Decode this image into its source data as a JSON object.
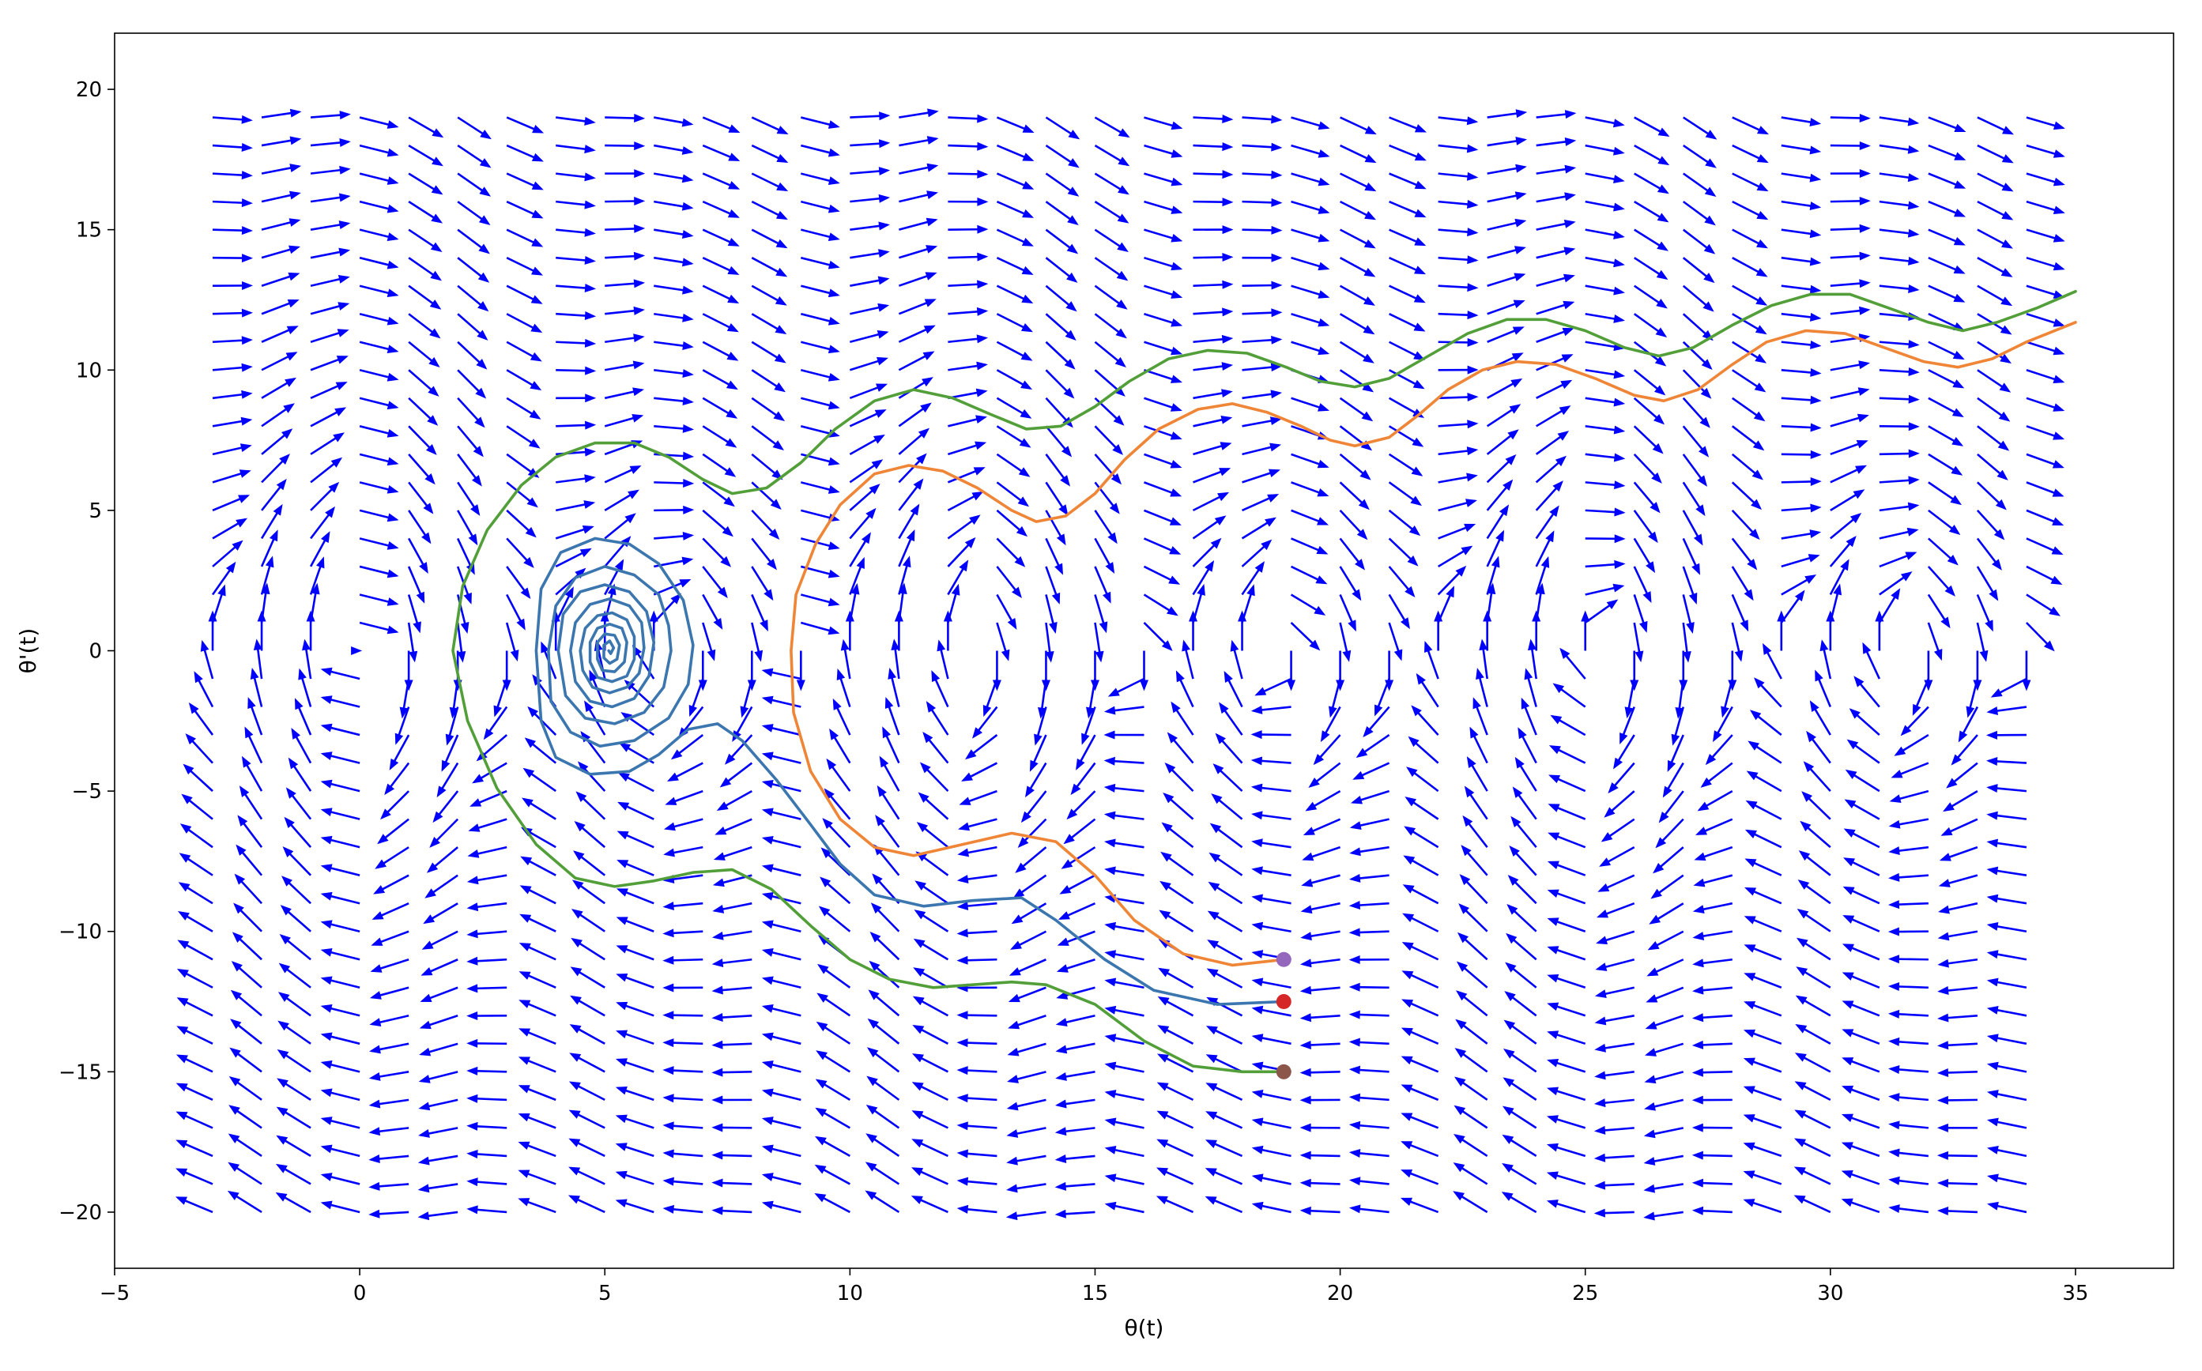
{
  "chart_data": {
    "type": "quiver",
    "title": "",
    "xlabel": "θ(t)",
    "ylabel": "θ'(t)",
    "xlim": [
      -5,
      37
    ],
    "ylim": [
      -22,
      22
    ],
    "xticks": [
      -5,
      0,
      5,
      10,
      15,
      20,
      25,
      30,
      35
    ],
    "yticks": [
      -20,
      -15,
      -10,
      -5,
      0,
      5,
      10,
      15,
      20
    ],
    "grid": false,
    "legend": "none",
    "vector_field": {
      "description_free": true,
      "color": "#0000ff",
      "x_range": [
        -3,
        34
      ],
      "y_range": [
        -20,
        19
      ],
      "nx": 38,
      "ny": 40
    },
    "series": [
      {
        "color": "#3b76af",
        "start": [
          18.85,
          -12.5
        ],
        "points": [
          [
            18.85,
            -12.5
          ],
          [
            17.5,
            -12.6
          ],
          [
            16.2,
            -12.1
          ],
          [
            15.2,
            -11.0
          ],
          [
            14.2,
            -9.6
          ],
          [
            13.5,
            -8.8
          ],
          [
            12.5,
            -8.9
          ],
          [
            11.5,
            -9.1
          ],
          [
            10.5,
            -8.7
          ],
          [
            9.8,
            -7.6
          ],
          [
            9.2,
            -6.2
          ],
          [
            8.5,
            -4.6
          ],
          [
            7.8,
            -3.2
          ],
          [
            7.3,
            -2.6
          ],
          [
            6.7,
            -2.8
          ],
          [
            6.1,
            -3.7
          ],
          [
            5.5,
            -4.3
          ],
          [
            4.7,
            -4.4
          ],
          [
            4.0,
            -3.8
          ],
          [
            3.7,
            -2.5
          ],
          [
            3.6,
            0.0
          ],
          [
            3.7,
            2.2
          ],
          [
            4.1,
            3.5
          ],
          [
            4.8,
            4.0
          ],
          [
            5.5,
            3.8
          ],
          [
            6.1,
            3.1
          ],
          [
            6.6,
            1.8
          ],
          [
            6.8,
            0.2
          ],
          [
            6.7,
            -1.2
          ],
          [
            6.3,
            -2.4
          ],
          [
            5.6,
            -3.2
          ],
          [
            4.9,
            -3.4
          ],
          [
            4.3,
            -2.9
          ],
          [
            3.9,
            -1.8
          ],
          [
            3.85,
            0.0
          ],
          [
            4.0,
            1.6
          ],
          [
            4.4,
            2.6
          ],
          [
            5.0,
            3.0
          ],
          [
            5.6,
            2.7
          ],
          [
            6.1,
            2.0
          ],
          [
            6.3,
            0.9
          ],
          [
            6.35,
            0.0
          ],
          [
            6.2,
            -1.3
          ],
          [
            5.8,
            -2.2
          ],
          [
            5.2,
            -2.6
          ],
          [
            4.6,
            -2.4
          ],
          [
            4.2,
            -1.6
          ],
          [
            4.05,
            0.0
          ],
          [
            4.15,
            1.3
          ],
          [
            4.5,
            2.1
          ],
          [
            5.0,
            2.35
          ],
          [
            5.5,
            2.1
          ],
          [
            5.85,
            1.4
          ],
          [
            6.0,
            0.3
          ],
          [
            5.9,
            -0.9
          ],
          [
            5.6,
            -1.7
          ],
          [
            5.15,
            -2.0
          ],
          [
            4.7,
            -1.8
          ],
          [
            4.4,
            -1.1
          ],
          [
            4.3,
            0.0
          ],
          [
            4.4,
            1.0
          ],
          [
            4.7,
            1.65
          ],
          [
            5.1,
            1.85
          ],
          [
            5.5,
            1.6
          ],
          [
            5.75,
            1.0
          ],
          [
            5.8,
            0.1
          ],
          [
            5.7,
            -0.8
          ],
          [
            5.45,
            -1.3
          ],
          [
            5.1,
            -1.5
          ],
          [
            4.75,
            -1.3
          ],
          [
            4.55,
            -0.7
          ],
          [
            4.5,
            0.0
          ],
          [
            4.6,
            0.8
          ],
          [
            4.85,
            1.25
          ],
          [
            5.15,
            1.35
          ],
          [
            5.45,
            1.1
          ],
          [
            5.6,
            0.5
          ],
          [
            5.6,
            -0.3
          ],
          [
            5.45,
            -0.9
          ],
          [
            5.15,
            -1.1
          ],
          [
            4.85,
            -0.95
          ],
          [
            4.7,
            -0.4
          ],
          [
            4.7,
            0.3
          ],
          [
            4.85,
            0.8
          ],
          [
            5.1,
            0.95
          ],
          [
            5.35,
            0.8
          ],
          [
            5.45,
            0.3
          ],
          [
            5.4,
            -0.4
          ],
          [
            5.2,
            -0.75
          ],
          [
            4.95,
            -0.7
          ],
          [
            4.85,
            -0.3
          ],
          [
            4.85,
            0.3
          ],
          [
            5.0,
            0.6
          ],
          [
            5.2,
            0.55
          ],
          [
            5.3,
            0.2
          ],
          [
            5.25,
            -0.3
          ],
          [
            5.1,
            -0.45
          ],
          [
            4.98,
            -0.25
          ],
          [
            4.98,
            0.2
          ],
          [
            5.1,
            0.35
          ],
          [
            5.18,
            0.1
          ],
          [
            5.12,
            -0.1
          ],
          [
            5.08,
            0.0
          ]
        ]
      },
      {
        "color": "#ef8536",
        "start": [
          18.85,
          -11.0
        ],
        "points": [
          [
            18.85,
            -11.0
          ],
          [
            17.8,
            -11.2
          ],
          [
            16.8,
            -10.8
          ],
          [
            15.8,
            -9.6
          ],
          [
            15.0,
            -8.0
          ],
          [
            14.2,
            -6.8
          ],
          [
            13.3,
            -6.5
          ],
          [
            12.3,
            -6.9
          ],
          [
            11.3,
            -7.3
          ],
          [
            10.5,
            -7.0
          ],
          [
            9.8,
            -6.0
          ],
          [
            9.2,
            -4.3
          ],
          [
            8.85,
            -2.2
          ],
          [
            8.8,
            0.0
          ],
          [
            8.9,
            2.0
          ],
          [
            9.3,
            3.8
          ],
          [
            9.8,
            5.2
          ],
          [
            10.5,
            6.3
          ],
          [
            11.2,
            6.6
          ],
          [
            11.9,
            6.4
          ],
          [
            12.6,
            5.8
          ],
          [
            13.3,
            5.0
          ],
          [
            13.8,
            4.6
          ],
          [
            14.4,
            4.8
          ],
          [
            15.0,
            5.6
          ],
          [
            15.6,
            6.8
          ],
          [
            16.3,
            7.9
          ],
          [
            17.1,
            8.6
          ],
          [
            17.8,
            8.8
          ],
          [
            18.5,
            8.5
          ],
          [
            19.2,
            8.0
          ],
          [
            19.8,
            7.5
          ],
          [
            20.3,
            7.3
          ],
          [
            21.0,
            7.6
          ],
          [
            21.6,
            8.4
          ],
          [
            22.2,
            9.3
          ],
          [
            22.9,
            10.0
          ],
          [
            23.6,
            10.3
          ],
          [
            24.4,
            10.2
          ],
          [
            25.2,
            9.7
          ],
          [
            26.0,
            9.1
          ],
          [
            26.6,
            8.9
          ],
          [
            27.3,
            9.3
          ],
          [
            28.0,
            10.2
          ],
          [
            28.7,
            11.0
          ],
          [
            29.5,
            11.4
          ],
          [
            30.3,
            11.3
          ],
          [
            31.1,
            10.8
          ],
          [
            31.9,
            10.3
          ],
          [
            32.6,
            10.1
          ],
          [
            33.3,
            10.4
          ],
          [
            34.0,
            11.0
          ],
          [
            35.0,
            11.7
          ]
        ]
      },
      {
        "color": "#529f3a",
        "start": [
          18.85,
          -15.0
        ],
        "points": [
          [
            18.85,
            -15.0
          ],
          [
            18.0,
            -15.0
          ],
          [
            17.0,
            -14.8
          ],
          [
            16.0,
            -13.9
          ],
          [
            15.0,
            -12.6
          ],
          [
            14.0,
            -11.9
          ],
          [
            13.3,
            -11.8
          ],
          [
            12.5,
            -11.9
          ],
          [
            11.7,
            -12.0
          ],
          [
            10.8,
            -11.7
          ],
          [
            10.0,
            -11.0
          ],
          [
            9.2,
            -9.8
          ],
          [
            8.4,
            -8.5
          ],
          [
            7.6,
            -7.8
          ],
          [
            6.8,
            -7.9
          ],
          [
            6.0,
            -8.2
          ],
          [
            5.2,
            -8.4
          ],
          [
            4.4,
            -8.1
          ],
          [
            3.6,
            -6.9
          ],
          [
            2.8,
            -4.9
          ],
          [
            2.2,
            -2.5
          ],
          [
            1.9,
            0.0
          ],
          [
            2.1,
            2.3
          ],
          [
            2.6,
            4.3
          ],
          [
            3.3,
            5.9
          ],
          [
            4.0,
            6.9
          ],
          [
            4.8,
            7.4
          ],
          [
            5.6,
            7.4
          ],
          [
            6.3,
            6.9
          ],
          [
            7.0,
            6.1
          ],
          [
            7.6,
            5.6
          ],
          [
            8.3,
            5.8
          ],
          [
            9.0,
            6.7
          ],
          [
            9.7,
            7.9
          ],
          [
            10.5,
            8.9
          ],
          [
            11.3,
            9.3
          ],
          [
            12.1,
            9.0
          ],
          [
            12.9,
            8.4
          ],
          [
            13.6,
            7.9
          ],
          [
            14.3,
            8.0
          ],
          [
            15.0,
            8.7
          ],
          [
            15.7,
            9.6
          ],
          [
            16.5,
            10.4
          ],
          [
            17.3,
            10.7
          ],
          [
            18.1,
            10.6
          ],
          [
            18.9,
            10.1
          ],
          [
            19.6,
            9.6
          ],
          [
            20.3,
            9.4
          ],
          [
            21.0,
            9.7
          ],
          [
            21.8,
            10.5
          ],
          [
            22.6,
            11.3
          ],
          [
            23.4,
            11.8
          ],
          [
            24.2,
            11.8
          ],
          [
            25.0,
            11.4
          ],
          [
            25.8,
            10.8
          ],
          [
            26.5,
            10.5
          ],
          [
            27.2,
            10.8
          ],
          [
            28.0,
            11.6
          ],
          [
            28.8,
            12.3
          ],
          [
            29.6,
            12.7
          ],
          [
            30.4,
            12.7
          ],
          [
            31.2,
            12.2
          ],
          [
            32.0,
            11.7
          ],
          [
            32.7,
            11.4
          ],
          [
            33.4,
            11.7
          ],
          [
            34.2,
            12.2
          ],
          [
            35.0,
            12.8
          ]
        ]
      }
    ],
    "markers": [
      {
        "x": 18.85,
        "y": -11.0,
        "color": "#9467bd"
      },
      {
        "x": 18.85,
        "y": -12.5,
        "color": "#d62728"
      },
      {
        "x": 18.85,
        "y": -15.0,
        "color": "#8c564b"
      }
    ]
  }
}
